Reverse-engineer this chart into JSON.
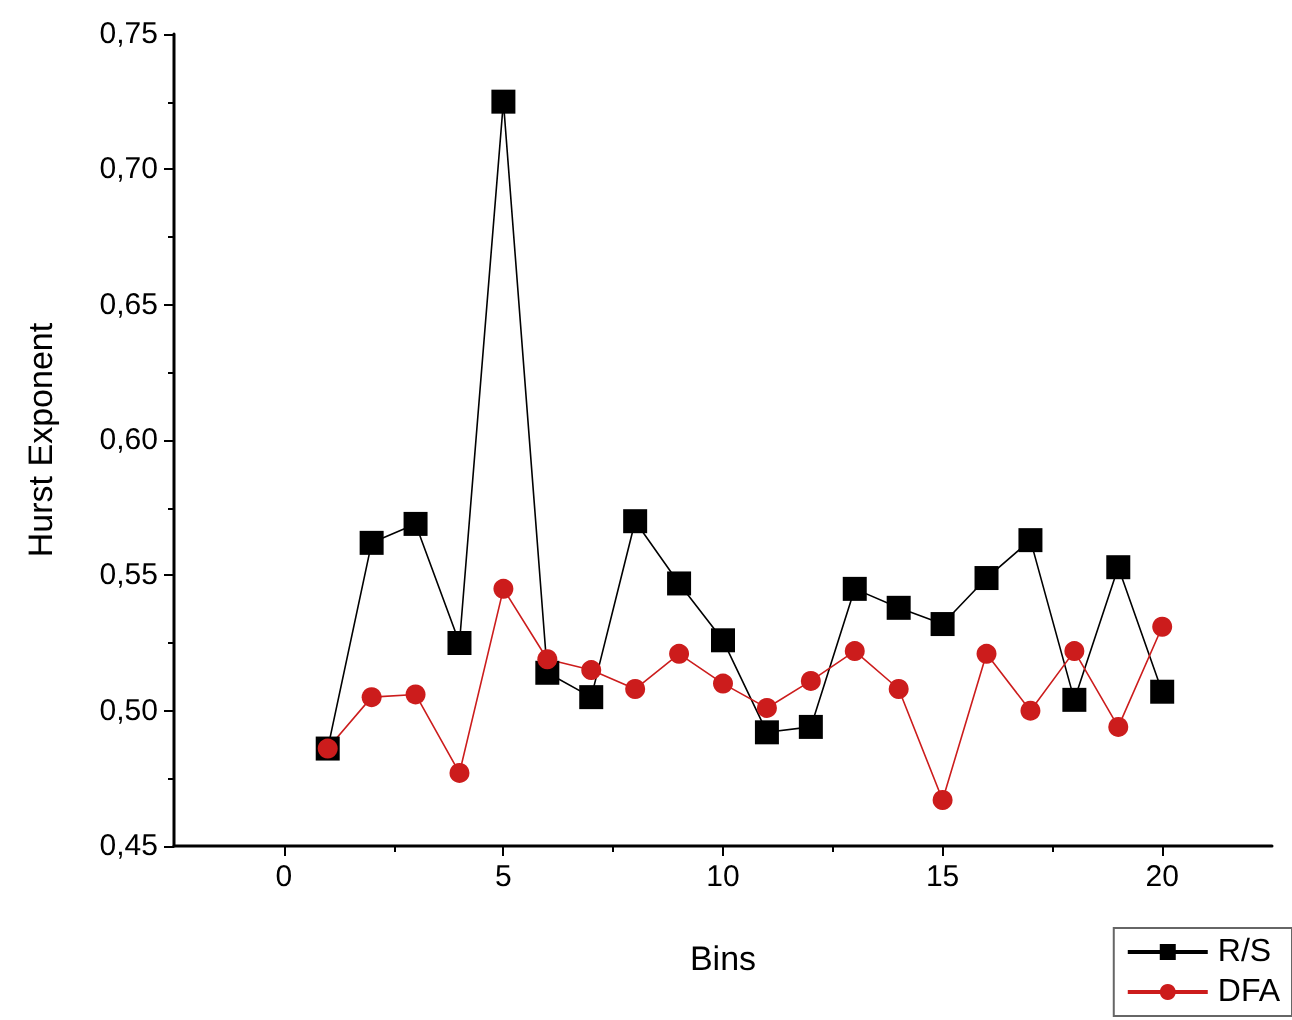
{
  "chart_data": {
    "type": "line",
    "xlabel": "Bins",
    "ylabel": "Hurst Exponent",
    "x": [
      1,
      2,
      3,
      4,
      5,
      6,
      7,
      8,
      9,
      10,
      11,
      12,
      13,
      14,
      15,
      16,
      17,
      18,
      19,
      20
    ],
    "series": [
      {
        "name": "R/S",
        "color": "#000000",
        "marker": "square",
        "values": [
          0.486,
          0.562,
          0.569,
          0.525,
          0.725,
          0.514,
          0.505,
          0.57,
          0.547,
          0.526,
          0.492,
          0.494,
          0.545,
          0.538,
          0.532,
          0.549,
          0.563,
          0.504,
          0.553,
          0.507
        ]
      },
      {
        "name": "DFA",
        "color": "#cc1c1c",
        "marker": "circle",
        "values": [
          0.486,
          0.505,
          0.506,
          0.477,
          0.545,
          0.519,
          0.515,
          0.508,
          0.521,
          0.51,
          0.501,
          0.511,
          0.522,
          0.508,
          0.467,
          0.521,
          0.5,
          0.522,
          0.494,
          0.531
        ]
      }
    ],
    "xlim": [
      -2.5,
      22.5
    ],
    "xticks": [
      0,
      5,
      10,
      15,
      20
    ],
    "ylim": [
      0.45,
      0.75
    ],
    "yticks": [
      {
        "value": 0.45,
        "label": "0,45"
      },
      {
        "value": 0.5,
        "label": "0,50"
      },
      {
        "value": 0.55,
        "label": "0,55"
      },
      {
        "value": 0.6,
        "label": "0,60"
      },
      {
        "value": 0.65,
        "label": "0,65"
      },
      {
        "value": 0.7,
        "label": "0,70"
      },
      {
        "value": 0.75,
        "label": "0,75"
      }
    ],
    "grid": false,
    "legend": "bottom right",
    "line_style": "solid"
  }
}
